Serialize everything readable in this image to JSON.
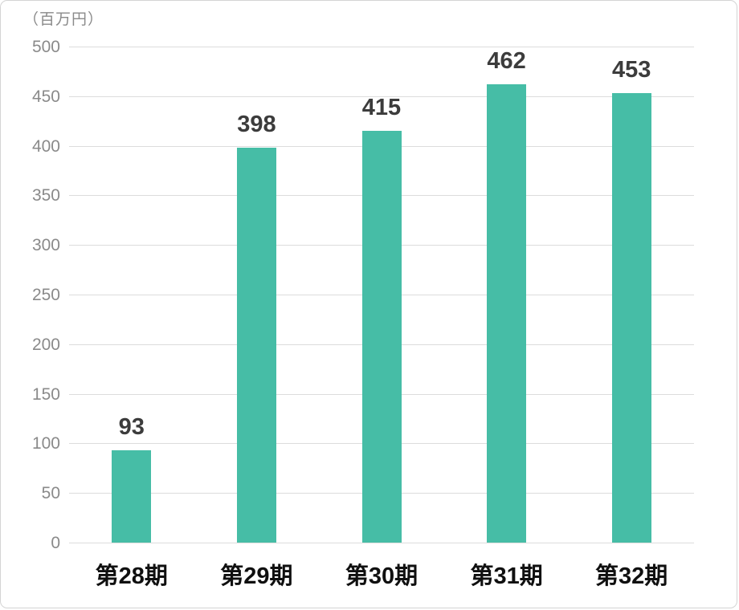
{
  "chart_data": {
    "type": "bar",
    "title": "",
    "unit_label": "（百万円）",
    "categories": [
      "第28期",
      "第29期",
      "第30期",
      "第31期",
      "第32期"
    ],
    "values": [
      93,
      398,
      415,
      462,
      453
    ],
    "value_labels": [
      "93",
      "398",
      "415",
      "462",
      "453"
    ],
    "yticks": [
      0,
      50,
      100,
      150,
      200,
      250,
      300,
      350,
      400,
      450,
      500
    ],
    "ylim": [
      0,
      500
    ],
    "xlabel": "",
    "ylabel": "",
    "legend": "none",
    "grid": "horizontal",
    "bar_color": "#46bda6",
    "grid_color": "#dcdcdc",
    "tick_label_color": "#8a8a8a",
    "value_label_color": "#3c3c3c",
    "category_label_color": "#101010",
    "background_color": "#ffffff"
  }
}
